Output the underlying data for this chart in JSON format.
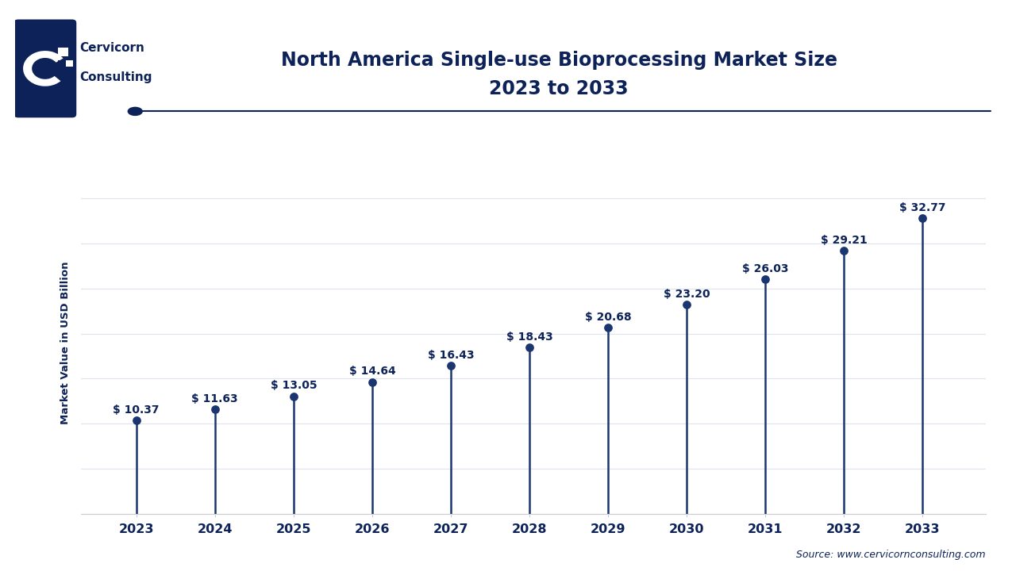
{
  "title_line1": "North America Single-use Bioprocessing Market Size",
  "title_line2": "2023 to 2033",
  "ylabel": "Market Value in USD Billion",
  "source": "Source: www.cervicornconsulting.com",
  "years": [
    2023,
    2024,
    2025,
    2026,
    2027,
    2028,
    2029,
    2030,
    2031,
    2032,
    2033
  ],
  "values": [
    10.37,
    11.63,
    13.05,
    14.64,
    16.43,
    18.43,
    20.68,
    23.2,
    26.03,
    29.21,
    32.77
  ],
  "labels": [
    "$ 10.37",
    "$ 11.63",
    "$ 13.05",
    "$ 14.64",
    "$ 16.43",
    "$ 18.43",
    "$ 20.68",
    "$ 23.20",
    "$ 26.03",
    "$ 29.21",
    "$ 32.77"
  ],
  "dark_navy": "#0d2258",
  "line_color": "#1a3570",
  "dot_color": "#1a3570",
  "bg_color": "#ffffff",
  "grid_color": "#dde3ef",
  "logo_bg": "#0d2258",
  "title_color": "#0d2258",
  "label_color": "#0d2258",
  "ylabel_color": "#0d2258",
  "source_color": "#0d2258",
  "tick_color": "#0d2258",
  "ylim": [
    0,
    38
  ],
  "yticks": [
    0,
    5,
    10,
    15,
    20,
    25,
    30,
    35
  ]
}
